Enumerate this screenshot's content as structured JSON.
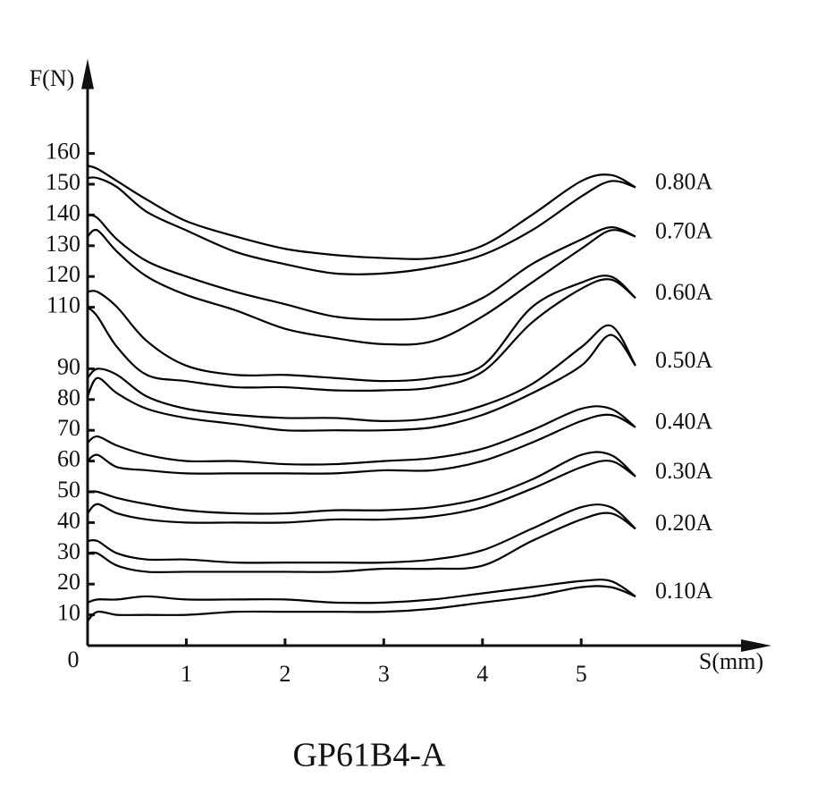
{
  "chart_data": {
    "type": "line",
    "title": "GP61B4-A",
    "y_label": "F(N)",
    "x_label": "S(mm)",
    "origin_label": "0",
    "x": [
      0,
      0.1,
      0.3,
      0.6,
      1,
      1.5,
      2,
      2.5,
      3,
      3.5,
      4,
      4.5,
      5,
      5.3,
      5.55
    ],
    "xlim": [
      0,
      6.8
    ],
    "xticks": [
      1,
      2,
      3,
      4,
      5
    ],
    "ylim": [
      0,
      185
    ],
    "yticks": [
      10,
      20,
      30,
      40,
      50,
      60,
      70,
      80,
      90,
      110,
      120,
      130,
      140,
      150,
      160
    ],
    "series": [
      {
        "name": "0.80A",
        "color": "#000000",
        "upper": [
          156,
          155,
          151,
          145,
          138,
          133,
          129,
          127,
          126,
          126,
          130,
          140,
          151,
          153,
          149
        ],
        "lower": [
          152,
          152,
          149,
          141,
          135,
          128,
          124,
          121,
          121,
          123,
          127,
          135,
          146,
          151,
          149
        ]
      },
      {
        "name": "0.70A",
        "color": "#000000",
        "upper": [
          140,
          139,
          132,
          125,
          120,
          115,
          111,
          107,
          106,
          107,
          113,
          124,
          132,
          136,
          133
        ],
        "lower": [
          133,
          135,
          128,
          120,
          114,
          109,
          103,
          100,
          98,
          99,
          107,
          118,
          129,
          135,
          133
        ]
      },
      {
        "name": "0.60A",
        "color": "#000000",
        "upper": [
          115,
          115,
          110,
          99,
          91,
          88,
          88,
          87,
          86,
          87,
          91,
          110,
          118,
          120,
          113
        ],
        "lower": [
          110,
          107,
          97,
          88,
          86,
          84,
          84,
          83,
          83,
          84,
          89,
          105,
          116,
          119,
          113
        ]
      },
      {
        "name": "0.50A",
        "color": "#000000",
        "upper": [
          87,
          90,
          88,
          81,
          77,
          75,
          74,
          74,
          73,
          74,
          78,
          85,
          97,
          104,
          91
        ],
        "lower": [
          81,
          87,
          82,
          77,
          74,
          72,
          70,
          70,
          70,
          71,
          75,
          82,
          91,
          101,
          91
        ]
      },
      {
        "name": "0.40A",
        "color": "#000000",
        "upper": [
          66,
          68,
          65,
          62,
          60,
          60,
          59,
          59,
          60,
          61,
          64,
          70,
          77,
          77,
          71
        ],
        "lower": [
          60,
          62,
          58,
          57,
          56,
          56,
          56,
          56,
          57,
          57,
          60,
          66,
          73,
          75,
          71
        ]
      },
      {
        "name": "0.30A",
        "color": "#000000",
        "upper": [
          50,
          50,
          48,
          46,
          44,
          43,
          43,
          44,
          44,
          45,
          48,
          54,
          62,
          62,
          55
        ],
        "lower": [
          43,
          46,
          43,
          41,
          40,
          40,
          40,
          41,
          41,
          42,
          45,
          51,
          58,
          60,
          55
        ]
      },
      {
        "name": "0.20A",
        "color": "#000000",
        "upper": [
          34,
          34,
          30,
          28,
          28,
          27,
          27,
          27,
          27,
          28,
          31,
          38,
          45,
          45,
          38
        ],
        "lower": [
          30,
          30,
          26,
          24,
          24,
          24,
          24,
          24,
          25,
          25,
          26,
          34,
          41,
          43,
          38
        ]
      },
      {
        "name": "0.10A",
        "color": "#000000",
        "upper": [
          14,
          15,
          15,
          16,
          15,
          15,
          15,
          14,
          14,
          15,
          17,
          19,
          21,
          21,
          16
        ],
        "lower": [
          8,
          11,
          10,
          10,
          10,
          11,
          11,
          11,
          11,
          12,
          14,
          16,
          19,
          19,
          16
        ]
      }
    ]
  }
}
